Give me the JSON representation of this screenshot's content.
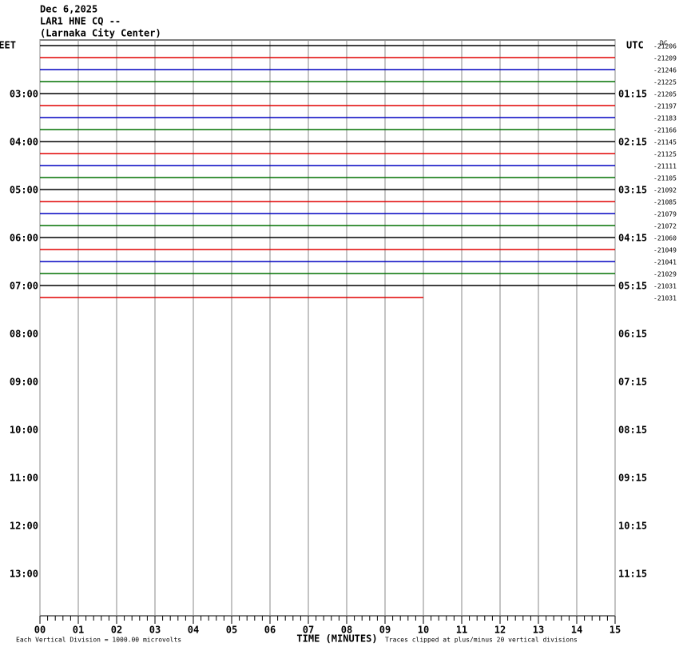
{
  "chart_data": {
    "type": "helicorder",
    "title": [
      "Dec 6,2025",
      "LAR1 HNE CQ --",
      "(Larnaka City Center)"
    ],
    "left_header": "EET",
    "right_header": "UTC",
    "offset_header": "DC",
    "left_labels": [
      "03:00",
      "04:00",
      "05:00",
      "06:00",
      "07:00",
      "08:00",
      "09:00",
      "10:00",
      "11:00",
      "12:00",
      "13:00"
    ],
    "right_labels": [
      "01:15",
      "02:15",
      "03:15",
      "04:15",
      "05:15",
      "06:15",
      "07:15",
      "08:15",
      "09:15",
      "10:15",
      "11:15"
    ],
    "offsets": [
      "-21206",
      "-21209",
      "-21246",
      "-21225",
      "-21205",
      "-21197",
      "-21183",
      "-21166",
      "-21145",
      "-21125",
      "-21111",
      "-21105",
      "-21092",
      "-21085",
      "-21079",
      "-21072",
      "-21060",
      "-21049",
      "-21041",
      "-21029",
      "-21031",
      "-21031"
    ],
    "colors": [
      "#000000",
      "#e00000",
      "#0000c0",
      "#007000"
    ],
    "trace_end": [
      15,
      15,
      15,
      15,
      15,
      15,
      15,
      15,
      15,
      15,
      15,
      15,
      15,
      15,
      15,
      15,
      15,
      15,
      15,
      15,
      15,
      10
    ],
    "xlim": [
      0,
      15
    ],
    "xticks": [
      {
        "value": 0,
        "label": "00"
      },
      {
        "value": 1,
        "label": "01"
      },
      {
        "value": 2,
        "label": "02"
      },
      {
        "value": 3,
        "label": "03"
      },
      {
        "value": 4,
        "label": "04"
      },
      {
        "value": 5,
        "label": "05"
      },
      {
        "value": 6,
        "label": "06"
      },
      {
        "value": 7,
        "label": "07"
      },
      {
        "value": 8,
        "label": "08"
      },
      {
        "value": 9,
        "label": "09"
      },
      {
        "value": 10,
        "label": "10"
      },
      {
        "value": 11,
        "label": "11"
      },
      {
        "value": 12,
        "label": "12"
      },
      {
        "value": 13,
        "label": "13"
      },
      {
        "value": 14,
        "label": "14"
      },
      {
        "value": 15,
        "label": "15"
      }
    ],
    "xlabel": "TIME (MINUTES)",
    "footer_left": "Each Vertical Division = 1000.00 microvolts",
    "footer_right": "Traces clipped at plus/minus 20 vertical divisions"
  }
}
